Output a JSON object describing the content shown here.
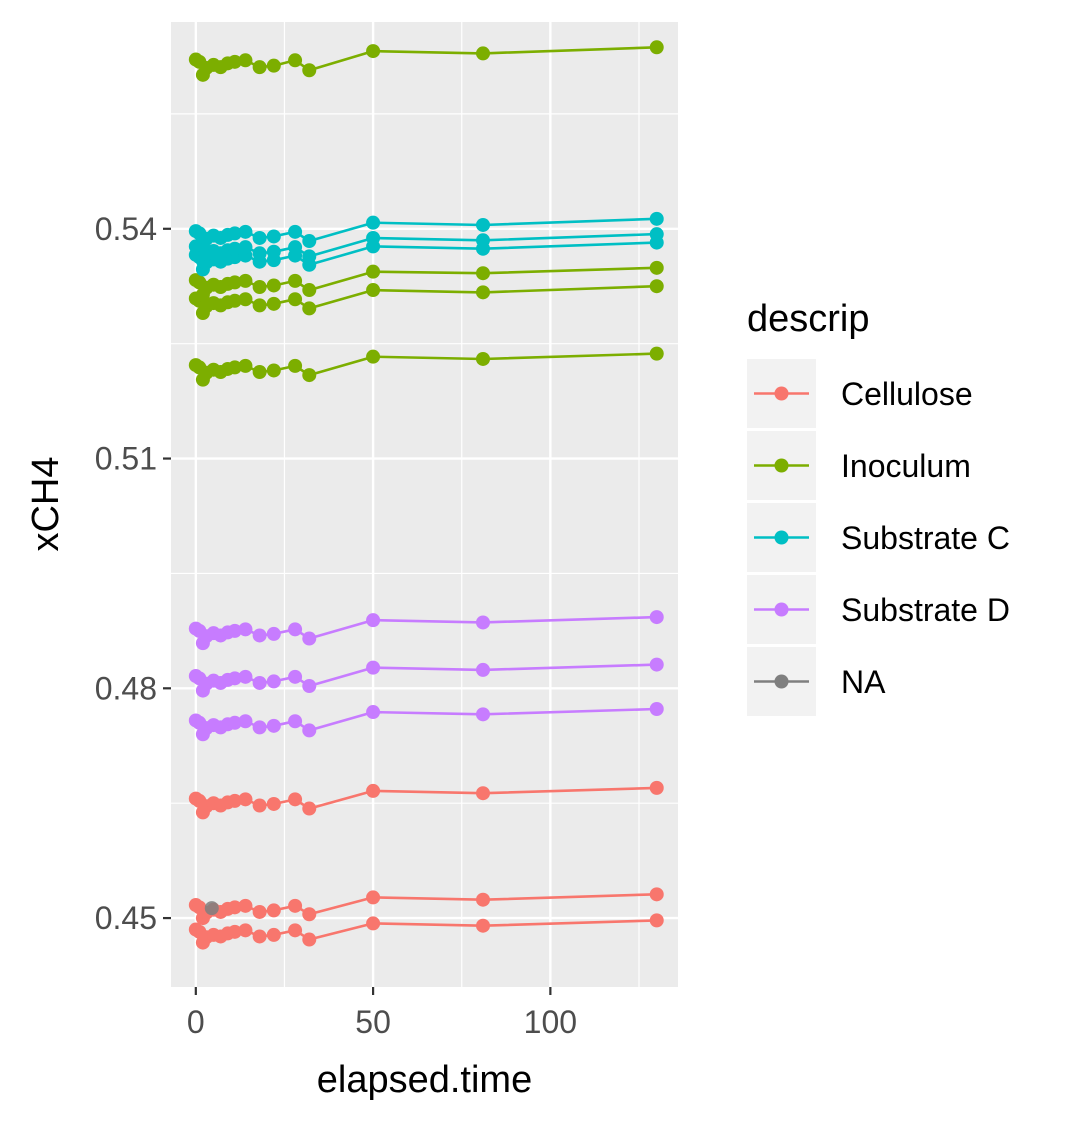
{
  "chart_data": {
    "type": "line",
    "xlabel": "elapsed.time",
    "ylabel": "xCH4",
    "xlim": [
      -7,
      136
    ],
    "ylim": [
      0.441,
      0.567
    ],
    "x_ticks": [
      0,
      50,
      100
    ],
    "x_tick_labels": [
      "0",
      "50",
      "100"
    ],
    "y_ticks": [
      0.45,
      0.48,
      0.51,
      0.54
    ],
    "y_tick_labels": [
      "0.45",
      "0.48",
      "0.51",
      "0.54"
    ],
    "grid": true,
    "legend": {
      "title": "descrip",
      "position": "right",
      "entries": [
        {
          "name": "Cellulose",
          "color": "#F8766D"
        },
        {
          "name": "Inoculum",
          "color": "#7CAE00"
        },
        {
          "name": "Substrate C",
          "color": "#00BFC4"
        },
        {
          "name": "Substrate D",
          "color": "#C77CFF"
        },
        {
          "name": "NA",
          "color": "#7F7F7F"
        }
      ]
    },
    "x": [
      0,
      1,
      2,
      3,
      5,
      7,
      9,
      11,
      14,
      18,
      22,
      28,
      32,
      50,
      81,
      130
    ],
    "series": [
      {
        "name": "Cellulose",
        "color": "#F8766D",
        "values": [
          0.4485,
          0.4482,
          0.4468,
          0.4475,
          0.4478,
          0.4476,
          0.448,
          0.4482,
          0.4484,
          0.4476,
          0.4478,
          0.4484,
          0.4472,
          0.4493,
          0.449,
          0.4497
        ]
      },
      {
        "name": "Cellulose",
        "color": "#F8766D",
        "values": [
          0.4517,
          0.4514,
          0.45,
          0.4507,
          0.4511,
          0.4508,
          0.4512,
          0.4514,
          0.4516,
          0.4508,
          0.451,
          0.4516,
          0.4505,
          0.4527,
          0.4524,
          0.4531
        ]
      },
      {
        "name": "Cellulose",
        "color": "#F8766D",
        "values": [
          0.4656,
          0.4653,
          0.4638,
          0.4646,
          0.465,
          0.4647,
          0.4651,
          0.4653,
          0.4655,
          0.4647,
          0.4649,
          0.4655,
          0.4643,
          0.4666,
          0.4663,
          0.467
        ]
      },
      {
        "name": "Inoculum",
        "color": "#7CAE00",
        "values": [
          0.5222,
          0.5219,
          0.5203,
          0.5212,
          0.5216,
          0.5213,
          0.5217,
          0.5219,
          0.5221,
          0.5213,
          0.5215,
          0.5221,
          0.5209,
          0.5233,
          0.523,
          0.5237
        ]
      },
      {
        "name": "Inoculum",
        "color": "#7CAE00",
        "values": [
          0.5309,
          0.5306,
          0.529,
          0.5299,
          0.5303,
          0.53,
          0.5304,
          0.5306,
          0.5308,
          0.53,
          0.5302,
          0.5308,
          0.5296,
          0.532,
          0.5317,
          0.5325
        ]
      },
      {
        "name": "Inoculum",
        "color": "#7CAE00",
        "values": [
          0.5333,
          0.533,
          0.5314,
          0.5323,
          0.5327,
          0.5324,
          0.5328,
          0.533,
          0.5332,
          0.5324,
          0.5326,
          0.5332,
          0.532,
          0.5344,
          0.5342,
          0.5349
        ]
      },
      {
        "name": "Inoculum",
        "color": "#7CAE00",
        "values": [
          0.5621,
          0.5618,
          0.5601,
          0.561,
          0.5614,
          0.5611,
          0.5616,
          0.5618,
          0.562,
          0.5611,
          0.5613,
          0.562,
          0.5607,
          0.5632,
          0.5629,
          0.5637
        ]
      },
      {
        "name": "Substrate C",
        "color": "#00BFC4",
        "values": [
          0.5366,
          0.5363,
          0.5347,
          0.5356,
          0.536,
          0.5357,
          0.5361,
          0.5363,
          0.5365,
          0.5357,
          0.5359,
          0.5365,
          0.5353,
          0.5377,
          0.5374,
          0.5382
        ]
      },
      {
        "name": "Substrate C",
        "color": "#00BFC4",
        "values": [
          0.5377,
          0.5374,
          0.5358,
          0.5367,
          0.5371,
          0.5368,
          0.5372,
          0.5374,
          0.5376,
          0.5368,
          0.537,
          0.5376,
          0.5364,
          0.5388,
          0.5385,
          0.5393
        ]
      },
      {
        "name": "Substrate C",
        "color": "#00BFC4",
        "values": [
          0.5397,
          0.5394,
          0.5378,
          0.5387,
          0.5391,
          0.5388,
          0.5392,
          0.5394,
          0.5396,
          0.5388,
          0.539,
          0.5396,
          0.5384,
          0.5408,
          0.5405,
          0.5413
        ]
      },
      {
        "name": "Substrate D",
        "color": "#C77CFF",
        "values": [
          0.4758,
          0.4755,
          0.474,
          0.4748,
          0.4752,
          0.4749,
          0.4753,
          0.4755,
          0.4757,
          0.4749,
          0.4751,
          0.4757,
          0.4745,
          0.4769,
          0.4766,
          0.4773
        ]
      },
      {
        "name": "Substrate D",
        "color": "#C77CFF",
        "values": [
          0.4816,
          0.4813,
          0.4797,
          0.4806,
          0.481,
          0.4807,
          0.4811,
          0.4813,
          0.4815,
          0.4807,
          0.4809,
          0.4815,
          0.4803,
          0.4827,
          0.4824,
          0.4831
        ]
      },
      {
        "name": "Substrate D",
        "color": "#C77CFF",
        "values": [
          0.4878,
          0.4875,
          0.4859,
          0.4868,
          0.4872,
          0.4869,
          0.4873,
          0.4875,
          0.4877,
          0.4869,
          0.4871,
          0.4877,
          0.4865,
          0.4889,
          0.4886,
          0.4893
        ]
      }
    ],
    "na_points": [
      {
        "x": 4.5,
        "y": 0.4513
      }
    ]
  }
}
